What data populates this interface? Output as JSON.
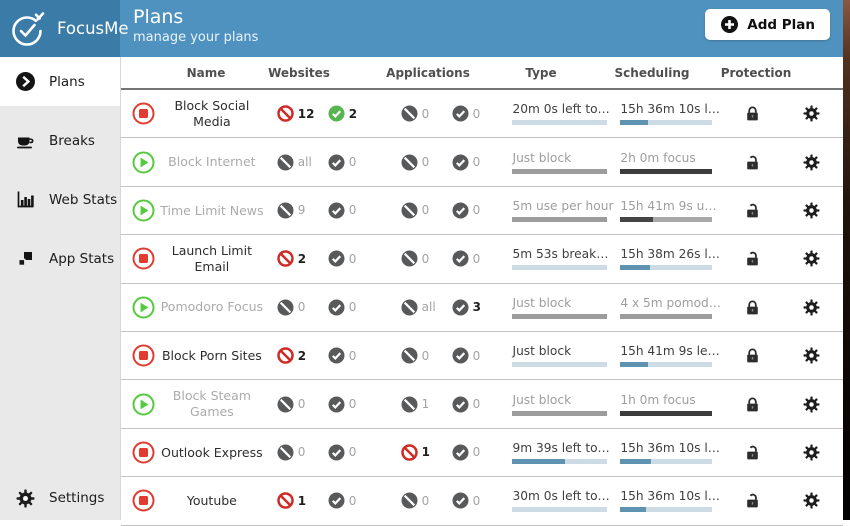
{
  "colors": {
    "header_blue": "#4f92bf",
    "logo_blue": "#3a7ba8",
    "sidebar_gray": "#e9e9e9",
    "stop_red": "#e23b30",
    "play_green": "#55c93f",
    "ban_red": "#cf2b26",
    "check_green": "#56b54e",
    "icon_gray": "#58595b",
    "bar_blue_fill": "#5e93b1",
    "bar_blue_track": "#ccdbe4"
  },
  "header": {
    "brand": "FocusMe",
    "title": "Plans",
    "subtitle": "manage your plans",
    "add_plan_label": "Add Plan"
  },
  "sidebar": {
    "items": [
      {
        "label": "Plans",
        "icon": "arrow-circle",
        "active": true
      },
      {
        "label": "Breaks",
        "icon": "coffee",
        "active": false
      },
      {
        "label": "Web Stats",
        "icon": "bar-chart",
        "active": false
      },
      {
        "label": "App Stats",
        "icon": "app-squares",
        "active": false
      }
    ],
    "settings": {
      "label": "Settings",
      "icon": "gear"
    }
  },
  "table": {
    "headers": [
      "Name",
      "Websites",
      "Applications",
      "Type",
      "Scheduling",
      "Protection"
    ],
    "rows": [
      {
        "name": "Block Social Media",
        "status": "stop",
        "websites": [
          {
            "icon": "ban",
            "color": "red",
            "count": "12",
            "count_dark": true
          },
          {
            "icon": "check",
            "color": "green",
            "count": "2",
            "count_dark": true
          }
        ],
        "applications": [
          {
            "icon": "ban",
            "color": "gray",
            "count": "0",
            "count_dark": false
          },
          {
            "icon": "check",
            "color": "gray",
            "count": "0",
            "count_dark": false
          }
        ],
        "type": {
          "text": "20m 0s left to…",
          "bar": "blue",
          "pct": 0
        },
        "scheduling": {
          "text": "15h 36m 10s l…",
          "bar": "blue",
          "pct": 30
        },
        "protection": "locked"
      },
      {
        "name": "Block Internet",
        "status": "play",
        "websites": [
          {
            "icon": "ban",
            "color": "gray",
            "count": "all",
            "count_dark": false
          },
          {
            "icon": "check",
            "color": "gray",
            "count": "0",
            "count_dark": false
          }
        ],
        "applications": [
          {
            "icon": "ban",
            "color": "gray",
            "count": "0",
            "count_dark": false
          },
          {
            "icon": "check",
            "color": "gray",
            "count": "0",
            "count_dark": false
          }
        ],
        "type": {
          "text": "Just block",
          "bar": "gray",
          "pct": 100
        },
        "scheduling": {
          "text": "2h 0m focus",
          "bar": "dark",
          "pct": 100
        },
        "protection": "unlocked"
      },
      {
        "name": "Time Limit News",
        "status": "play",
        "websites": [
          {
            "icon": "ban",
            "color": "gray",
            "count": "9",
            "count_dark": false
          },
          {
            "icon": "check",
            "color": "gray",
            "count": "0",
            "count_dark": false
          }
        ],
        "applications": [
          {
            "icon": "ban",
            "color": "gray",
            "count": "0",
            "count_dark": false
          },
          {
            "icon": "check",
            "color": "gray",
            "count": "0",
            "count_dark": false
          }
        ],
        "type": {
          "text": "5m use per hour",
          "bar": "gray",
          "pct": 100
        },
        "scheduling": {
          "text": "15h 41m 9s u…",
          "bar": "graydark",
          "pct": 35
        },
        "protection": "unlocked"
      },
      {
        "name": "Launch Limit Email",
        "status": "stop",
        "websites": [
          {
            "icon": "ban",
            "color": "red",
            "count": "2",
            "count_dark": true
          },
          {
            "icon": "check",
            "color": "gray",
            "count": "0",
            "count_dark": false
          }
        ],
        "applications": [
          {
            "icon": "ban",
            "color": "gray",
            "count": "0",
            "count_dark": false
          },
          {
            "icon": "check",
            "color": "gray",
            "count": "0",
            "count_dark": false
          }
        ],
        "type": {
          "text": "5m 53s break…",
          "bar": "blue",
          "pct": 0
        },
        "scheduling": {
          "text": "15h 38m 26s l…",
          "bar": "blue",
          "pct": 32
        },
        "protection": "unlocked"
      },
      {
        "name": "Pomodoro Focus",
        "status": "play",
        "websites": [
          {
            "icon": "ban",
            "color": "gray",
            "count": "0",
            "count_dark": false
          },
          {
            "icon": "check",
            "color": "gray",
            "count": "0",
            "count_dark": false
          }
        ],
        "applications": [
          {
            "icon": "ban",
            "color": "gray",
            "count": "all",
            "count_dark": false
          },
          {
            "icon": "check",
            "color": "gray",
            "count": "3",
            "count_dark": true
          }
        ],
        "type": {
          "text": "Just block",
          "bar": "gray",
          "pct": 100
        },
        "scheduling": {
          "text": "4 x 5m pomod…",
          "bar": "gray",
          "pct": 100
        },
        "protection": "locked"
      },
      {
        "name": "Block Porn Sites",
        "status": "stop",
        "websites": [
          {
            "icon": "ban",
            "color": "red",
            "count": "2",
            "count_dark": true
          },
          {
            "icon": "check",
            "color": "gray",
            "count": "0",
            "count_dark": false
          }
        ],
        "applications": [
          {
            "icon": "ban",
            "color": "gray",
            "count": "0",
            "count_dark": false
          },
          {
            "icon": "check",
            "color": "gray",
            "count": "0",
            "count_dark": false
          }
        ],
        "type": {
          "text": "Just block",
          "bar": "blue",
          "pct": 0
        },
        "scheduling": {
          "text": "15h 41m 9s le…",
          "bar": "blue",
          "pct": 30
        },
        "protection": "locked"
      },
      {
        "name": "Block Steam Games",
        "status": "play",
        "websites": [
          {
            "icon": "ban",
            "color": "gray",
            "count": "0",
            "count_dark": false
          },
          {
            "icon": "check",
            "color": "gray",
            "count": "0",
            "count_dark": false
          }
        ],
        "applications": [
          {
            "icon": "ban",
            "color": "gray",
            "count": "1",
            "count_dark": false
          },
          {
            "icon": "check",
            "color": "gray",
            "count": "0",
            "count_dark": false
          }
        ],
        "type": {
          "text": "Just block",
          "bar": "gray",
          "pct": 100
        },
        "scheduling": {
          "text": "1h 0m focus",
          "bar": "dark",
          "pct": 100
        },
        "protection": "locked"
      },
      {
        "name": "Outlook Express",
        "status": "stop",
        "websites": [
          {
            "icon": "ban",
            "color": "gray",
            "count": "0",
            "count_dark": false
          },
          {
            "icon": "check",
            "color": "gray",
            "count": "0",
            "count_dark": false
          }
        ],
        "applications": [
          {
            "icon": "ban",
            "color": "red",
            "count": "1",
            "count_dark": true
          },
          {
            "icon": "check",
            "color": "gray",
            "count": "0",
            "count_dark": false
          }
        ],
        "type": {
          "text": "9m 39s left to…",
          "bar": "blue",
          "pct": 55
        },
        "scheduling": {
          "text": "15h 36m 10s l…",
          "bar": "blue",
          "pct": 33
        },
        "protection": "unlocked"
      },
      {
        "name": "Youtube",
        "status": "stop",
        "websites": [
          {
            "icon": "ban",
            "color": "red",
            "count": "1",
            "count_dark": true
          },
          {
            "icon": "check",
            "color": "gray",
            "count": "0",
            "count_dark": false
          }
        ],
        "applications": [
          {
            "icon": "ban",
            "color": "gray",
            "count": "0",
            "count_dark": false
          },
          {
            "icon": "check",
            "color": "gray",
            "count": "0",
            "count_dark": false
          }
        ],
        "type": {
          "text": "30m 0s left to…",
          "bar": "blue",
          "pct": 0
        },
        "scheduling": {
          "text": "15h 36m 10s l…",
          "bar": "blue",
          "pct": 28
        },
        "protection": "unlocked"
      }
    ]
  }
}
